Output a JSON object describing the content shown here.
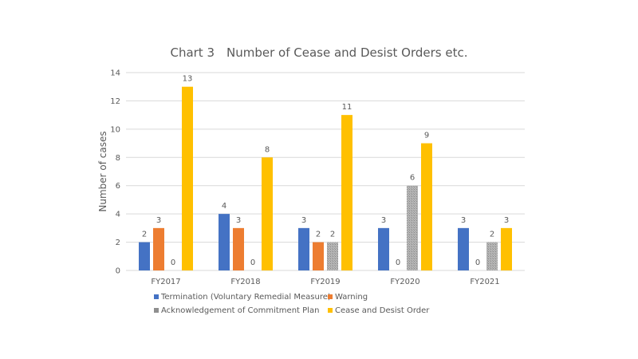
{
  "chart_data": {
    "type": "bar",
    "title": "Chart 3　Number of Cease and Desist Orders etc.",
    "xlabel": "",
    "ylabel": "Number of cases",
    "ylim": [
      0,
      14
    ],
    "yticks": [
      0,
      2,
      4,
      6,
      8,
      10,
      12,
      14
    ],
    "grid": true,
    "legend_placement": "bottom",
    "categories": [
      "FY2017",
      "FY2018",
      "FY2019",
      "FY2020",
      "FY2021"
    ],
    "series": [
      {
        "name": "Termination (Voluntary Remedial Measure)",
        "color": "#4472C4",
        "values": [
          2,
          4,
          3,
          3,
          3
        ]
      },
      {
        "name": "Warning",
        "color": "#ED7D31",
        "values": [
          3,
          3,
          2,
          0,
          0
        ]
      },
      {
        "name": "Acknowledgement of Commitment Plan",
        "color": "#A5A5A5",
        "values": [
          0,
          0,
          2,
          6,
          2
        ]
      },
      {
        "name": "Cease and Desist Order",
        "color": "#FFC000",
        "values": [
          13,
          8,
          11,
          9,
          3
        ]
      }
    ]
  }
}
